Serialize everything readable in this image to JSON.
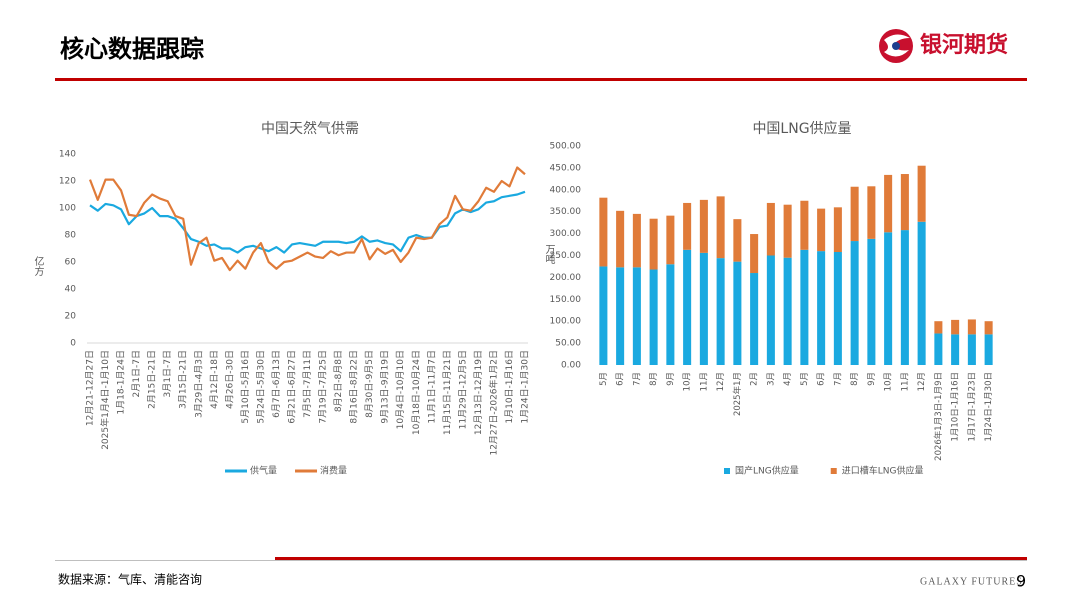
{
  "header": {
    "title": "核心数据跟踪",
    "logo": "银河期货"
  },
  "chart_data": [
    {
      "type": "line",
      "title": "中国天然气供需",
      "ylabel": "亿方",
      "categories": [
        "12月21-12月27日",
        null,
        "2025年1月4日-1月10日",
        null,
        "1月18-1月24日",
        null,
        "2月1日-7日",
        null,
        "2月15日-21日",
        null,
        "3月1日-7日",
        null,
        "3月15日-21日",
        null,
        "3月29日-4月3日",
        null,
        "4月12日-18日",
        null,
        "4月26日-30日",
        null,
        "5月10日-5月16日",
        null,
        "5月24日-5月30日",
        null,
        "6月7日-6月13日",
        null,
        "6月21日-6月27日",
        null,
        "7月5日-7月11日",
        null,
        "7月19日-7月25日",
        null,
        "8月2日-8月8日",
        null,
        "8月16日-8月22日",
        null,
        "8月30日-9月5日",
        null,
        "9月13日-9月19日",
        null,
        "10月4日-10月10日",
        null,
        "10月18日-10月24日",
        null,
        "11月1日-11月7日",
        null,
        "11月15日-11月21日",
        null,
        "11月29日-12月5日",
        null,
        "12月13日-12月19日",
        null,
        "12月27日-2026年1月2日",
        null,
        "1月10日-1月16日",
        null,
        "1月24日-1月30日"
      ],
      "series": [
        {
          "name": "供气量",
          "color": "#1aa9e0",
          "values": [
            102,
            98,
            103,
            102,
            99,
            88,
            94,
            96,
            100,
            94,
            94,
            92,
            85,
            77,
            75,
            72,
            73,
            70,
            70,
            67,
            71,
            72,
            70,
            68,
            71,
            67,
            73,
            74,
            73,
            72,
            75,
            75,
            75,
            74,
            75,
            79,
            75,
            76,
            74,
            73,
            68,
            78,
            80,
            78,
            78,
            86,
            87,
            96,
            99,
            97,
            99,
            104,
            105,
            108,
            109,
            110,
            112
          ]
        },
        {
          "name": "消费量",
          "color": "#e07b39",
          "values": [
            121,
            106,
            121,
            121,
            113,
            95,
            94,
            104,
            110,
            107,
            105,
            94,
            92,
            58,
            74,
            78,
            61,
            63,
            54,
            61,
            55,
            67,
            74,
            60,
            55,
            60,
            61,
            64,
            67,
            64,
            63,
            68,
            65,
            67,
            67,
            77,
            62,
            70,
            66,
            69,
            60,
            67,
            78,
            77,
            78,
            88,
            93,
            109,
            99,
            98,
            105,
            115,
            112,
            120,
            116,
            130,
            125
          ]
        }
      ],
      "ylim": [
        0,
        140
      ],
      "yticks": [
        0,
        20,
        40,
        60,
        80,
        100,
        120,
        140
      ],
      "grid": false,
      "legend": "bottom"
    },
    {
      "type": "stacked_bar",
      "title": "中国LNG供应量",
      "ylabel": "万吨",
      "categories": [
        "5月",
        "6月",
        "7月",
        "8月",
        "9月",
        "10月",
        "11月",
        "12月",
        "2025年1月",
        "2月",
        "3月",
        "4月",
        "5月",
        "6月",
        "7月",
        "8月",
        "9月",
        "10月",
        "11月",
        "12月",
        "2026年1月3日-1月9日",
        "1月10日-1月16日",
        "1月17日-1月23日",
        "1月24日-1月30日"
      ],
      "series": [
        {
          "name": "国产LNG供应量",
          "color": "#1aa9e0",
          "values": [
            225,
            223,
            223,
            218,
            230,
            263,
            256,
            244,
            236,
            210,
            250,
            245,
            263,
            260,
            258,
            283,
            288,
            303,
            308,
            327,
            72,
            70,
            70,
            70
          ]
        },
        {
          "name": "进口槽车LNG供应量",
          "color": "#e07b39",
          "values": [
            157,
            129,
            122,
            116,
            111,
            107,
            121,
            141,
            97,
            89,
            120,
            121,
            112,
            97,
            102,
            124,
            120,
            131,
            128,
            128,
            28,
            33,
            34,
            30
          ]
        }
      ],
      "ylim": [
        0,
        500
      ],
      "yticks": [
        {
          "value": 0,
          "label": "0.00"
        },
        {
          "value": 50,
          "label": "50.00"
        },
        {
          "value": 100,
          "label": "100.00"
        },
        {
          "value": 150,
          "label": "150.00"
        },
        {
          "value": 200,
          "label": "200.00"
        },
        {
          "value": 250,
          "label": "250.00"
        },
        {
          "value": 300,
          "label": "300.00"
        },
        {
          "value": 350,
          "label": "350.00"
        },
        {
          "value": 400,
          "label": "400.00"
        },
        {
          "value": 450,
          "label": "450.00"
        },
        {
          "value": 500,
          "label": "500.00"
        }
      ],
      "grid": false,
      "legend": "bottom"
    }
  ],
  "footer": {
    "source": "数据来源：气库、清能咨询",
    "brand": "GALAXY FUTURES",
    "page": "9"
  }
}
